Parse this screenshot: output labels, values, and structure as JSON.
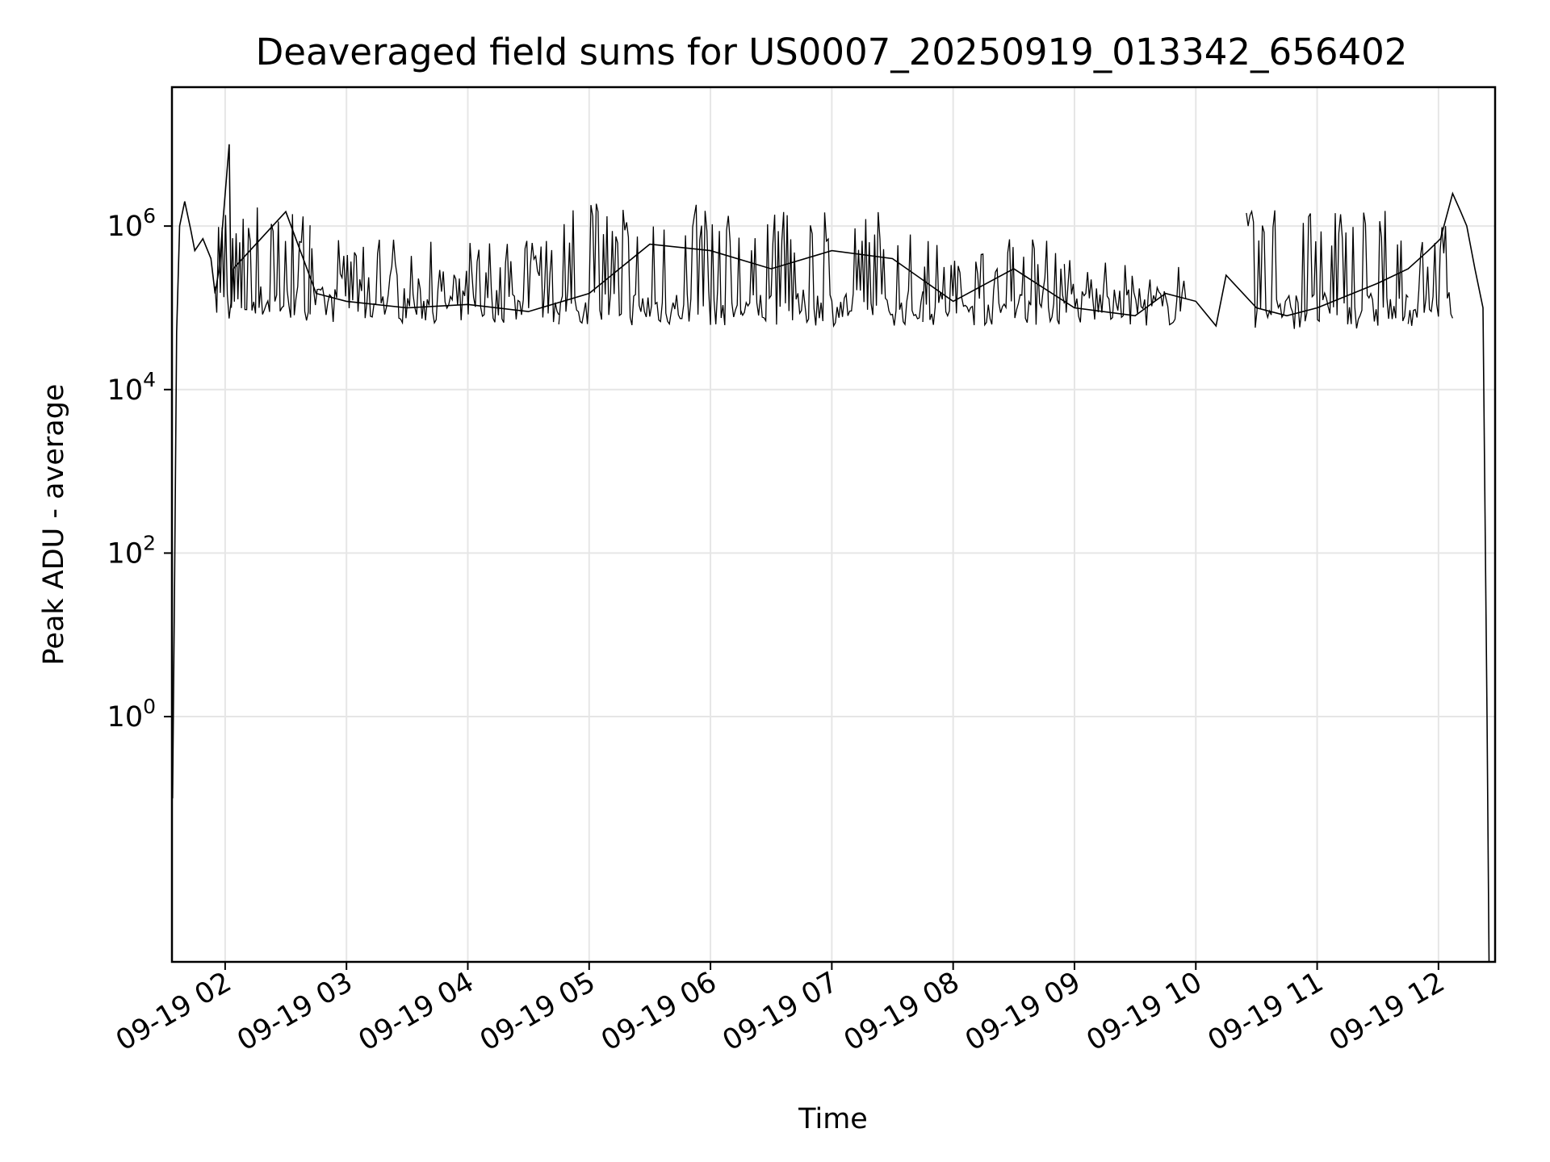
{
  "chart_data": {
    "type": "line",
    "title": "Deaveraged field sums for US0007_20250919_013342_656402",
    "xlabel": "Time",
    "ylabel": "Peak ADU - average",
    "yscale": "log",
    "grid": true,
    "legend": "none",
    "color": "#000000",
    "xlim": [
      "2025-09-19T01:33:42",
      "2025-09-19T12:28:00"
    ],
    "ylim": [
      0.001,
      50000000
    ],
    "x_ticks": [
      {
        "value": "2025-09-19T02:00",
        "label": "09-19 02"
      },
      {
        "value": "2025-09-19T03:00",
        "label": "09-19 03"
      },
      {
        "value": "2025-09-19T04:00",
        "label": "09-19 04"
      },
      {
        "value": "2025-09-19T05:00",
        "label": "09-19 05"
      },
      {
        "value": "2025-09-19T06:00",
        "label": "09-19 06"
      },
      {
        "value": "2025-09-19T07:00",
        "label": "09-19 07"
      },
      {
        "value": "2025-09-19T08:00",
        "label": "09-19 08"
      },
      {
        "value": "2025-09-19T09:00",
        "label": "09-19 09"
      },
      {
        "value": "2025-09-19T10:00",
        "label": "09-19 10"
      },
      {
        "value": "2025-09-19T11:00",
        "label": "09-19 11"
      },
      {
        "value": "2025-09-19T12:00",
        "label": "09-19 12"
      }
    ],
    "y_ticks": [
      {
        "value": 1,
        "base": "10",
        "exp": "0"
      },
      {
        "value": 100,
        "base": "10",
        "exp": "2"
      },
      {
        "value": 10000,
        "base": "10",
        "exp": "4"
      },
      {
        "value": 1000000,
        "base": "10",
        "exp": "6"
      }
    ],
    "x": [
      "2025-09-19T01:34:00",
      "2025-09-19T01:35:00",
      "2025-09-19T01:36:00",
      "2025-09-19T01:37:30",
      "2025-09-19T01:40:00",
      "2025-09-19T01:43:00",
      "2025-09-19T01:45:00",
      "2025-09-19T01:49:00",
      "2025-09-19T01:53:00",
      "2025-09-19T01:55:00",
      "2025-09-19T01:57:00",
      "2025-09-19T02:02:00",
      "2025-09-19T02:03:00",
      "2025-09-19T02:04:00",
      "2025-09-19T02:30:00",
      "2025-09-19T02:45:00",
      "2025-09-19T03:00:00",
      "2025-09-19T03:30:00",
      "2025-09-19T04:00:00",
      "2025-09-19T04:30:00",
      "2025-09-19T05:00:00",
      "2025-09-19T05:30:00",
      "2025-09-19T06:00:00",
      "2025-09-19T06:30:00",
      "2025-09-19T07:00:00",
      "2025-09-19T07:30:00",
      "2025-09-19T08:00:00",
      "2025-09-19T08:30:00",
      "2025-09-19T09:00:00",
      "2025-09-19T09:30:00",
      "2025-09-19T09:45:00",
      "2025-09-19T10:00:00",
      "2025-09-19T10:10:00",
      "2025-09-19T10:15:00",
      "2025-09-19T10:30:00",
      "2025-09-19T10:45:00",
      "2025-09-19T11:00:00",
      "2025-09-19T11:30:00",
      "2025-09-19T11:45:00",
      "2025-09-19T11:55:00",
      "2025-09-19T12:01:00",
      "2025-09-19T12:07:00",
      "2025-09-19T12:11:00",
      "2025-09-19T12:14:00",
      "2025-09-19T12:18:00",
      "2025-09-19T12:22:00",
      "2025-09-19T12:24:00",
      "2025-09-19T12:25:00"
    ],
    "values": [
      0.1,
      50,
      50000,
      1000000,
      2000000,
      900000,
      500000,
      700000,
      400000,
      150000,
      300000,
      10000000,
      100000,
      300000,
      1500000,
      150000,
      120000,
      100000,
      110000,
      90000,
      150000,
      600000,
      500000,
      300000,
      500000,
      400000,
      120000,
      300000,
      100000,
      80000,
      150000,
      120000,
      60000,
      250000,
      100000,
      80000,
      100000,
      200000,
      300000,
      500000,
      700000,
      2500000,
      1500000,
      1000000,
      300000,
      100000,
      1,
      0.001
    ],
    "oscillation_bands": [
      {
        "start": "2025-09-19T01:55:00",
        "end": "2025-09-19T02:42:00",
        "low": 70000,
        "high": 1800000
      },
      {
        "start": "2025-09-19T02:42:00",
        "end": "2025-09-19T04:45:00",
        "low": 65000,
        "high": 700000
      },
      {
        "start": "2025-09-19T04:45:00",
        "end": "2025-09-19T06:15:00",
        "low": 60000,
        "high": 1900000
      },
      {
        "start": "2025-09-19T06:15:00",
        "end": "2025-09-19T07:45:00",
        "low": 60000,
        "high": 1500000
      },
      {
        "start": "2025-09-19T07:45:00",
        "end": "2025-09-19T08:55:00",
        "low": 60000,
        "high": 700000
      },
      {
        "start": "2025-09-19T08:55:00",
        "end": "2025-09-19T09:55:00",
        "low": 60000,
        "high": 400000
      },
      {
        "start": "2025-09-19T10:25:00",
        "end": "2025-09-19T11:45:00",
        "low": 55000,
        "high": 1800000
      },
      {
        "start": "2025-09-19T11:45:00",
        "end": "2025-09-19T12:07:00",
        "low": 60000,
        "high": 1000000
      }
    ]
  }
}
